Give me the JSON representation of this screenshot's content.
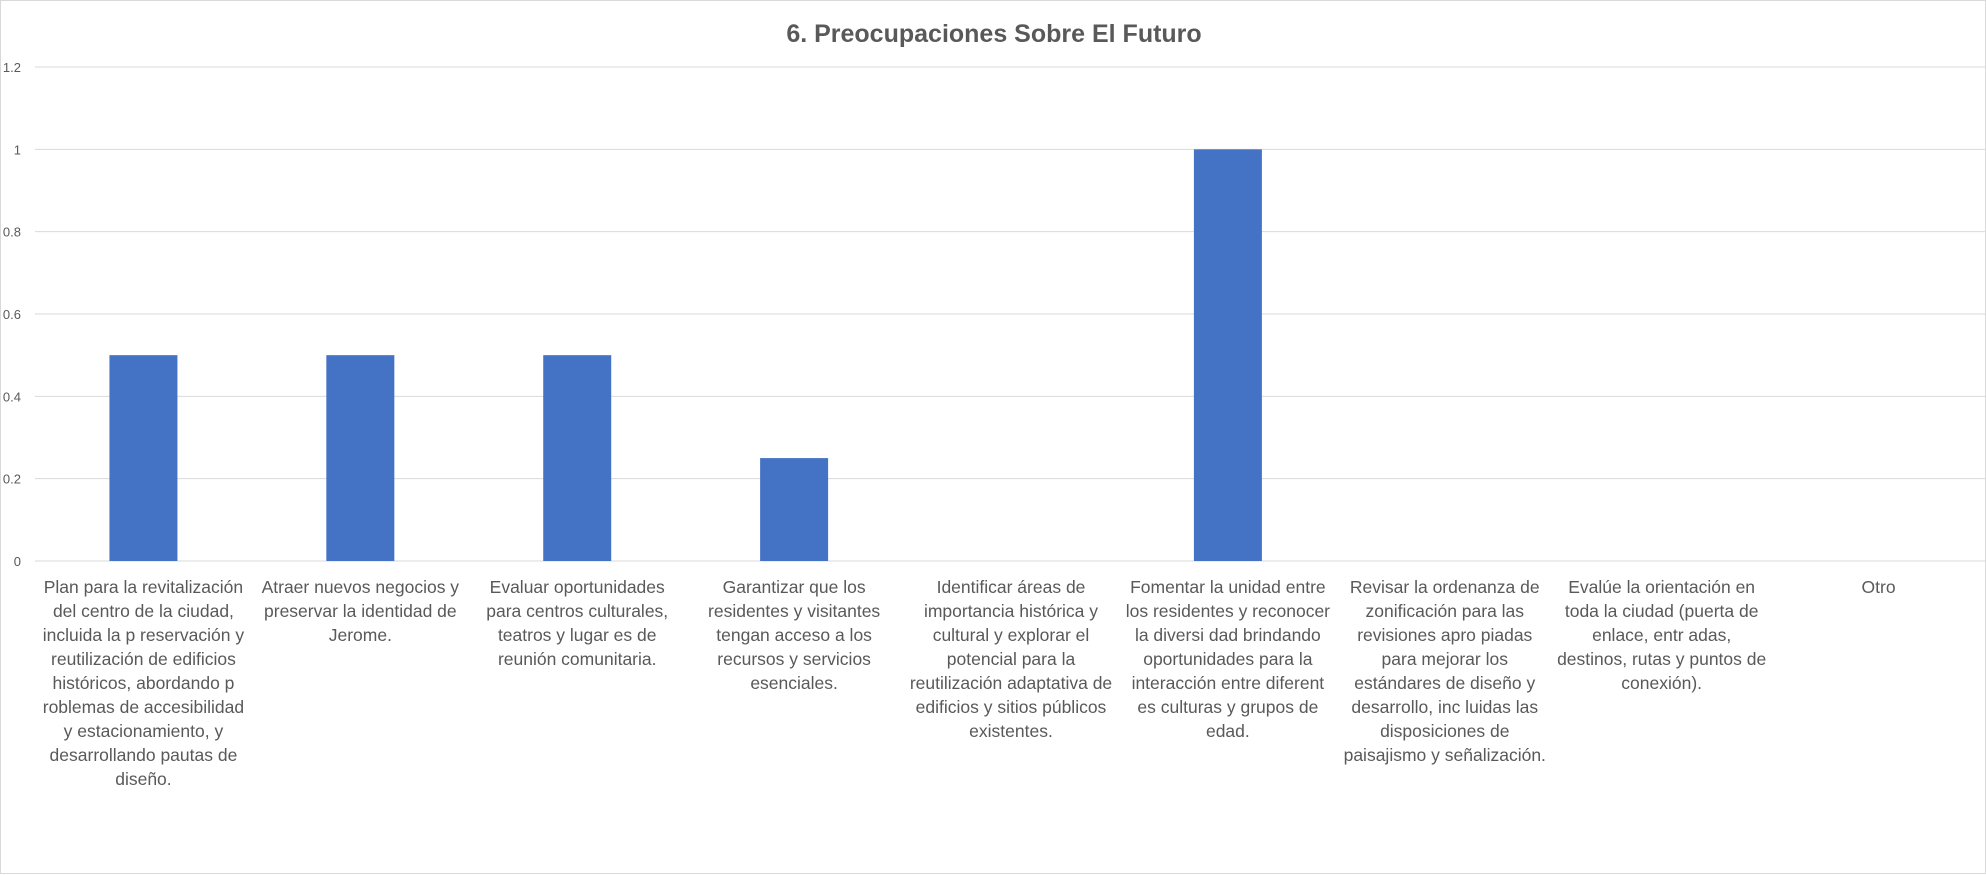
{
  "chart_data": {
    "type": "bar",
    "title": "6. Preocupaciones Sobre El Futuro",
    "xlabel": "",
    "ylabel": "",
    "ylim": [
      0,
      1.2
    ],
    "yticks": [
      "0",
      "0.2",
      "0.4",
      "0.6",
      "0.8",
      "1",
      "1.2"
    ],
    "grid": true,
    "legend": "none",
    "bar_color": "#4472C4",
    "categories": [
      "Plan para la revitalización del centro de la ciudad, incluida la p reservación y reutilización de edificios históricos, abordando p roblemas de accesibilidad y estacionamiento, y desarrollando pautas de diseño.",
      "Atraer nuevos negocios y preservar la identidad de Jerome.",
      "Evaluar oportunidades para centros culturales, teatros y lugar es de reunión comunitaria.",
      "Garantizar que los residentes y visitantes tengan acceso a los recursos y servicios esenciales.",
      "Identificar áreas de importancia histórica y cultural y explorar el potencial para la reutilización adaptativa de edificios y sitios públicos existentes.",
      "Fomentar la unidad entre los residentes y reconocer la diversi dad brindando oportunidades para la interacción entre diferent es culturas y grupos de edad.",
      "Revisar la ordenanza de zonificación para las revisiones apro piadas para mejorar los estándares de diseño y desarrollo, inc luidas las disposiciones de paisajismo y señalización.",
      "Evalúe la orientación en toda la ciudad (puerta de enlace, entr adas, destinos, rutas y puntos de conexión).",
      "Otro"
    ],
    "values": [
      0.5,
      0.5,
      0.5,
      0.25,
      0,
      1,
      0,
      0,
      0
    ]
  }
}
